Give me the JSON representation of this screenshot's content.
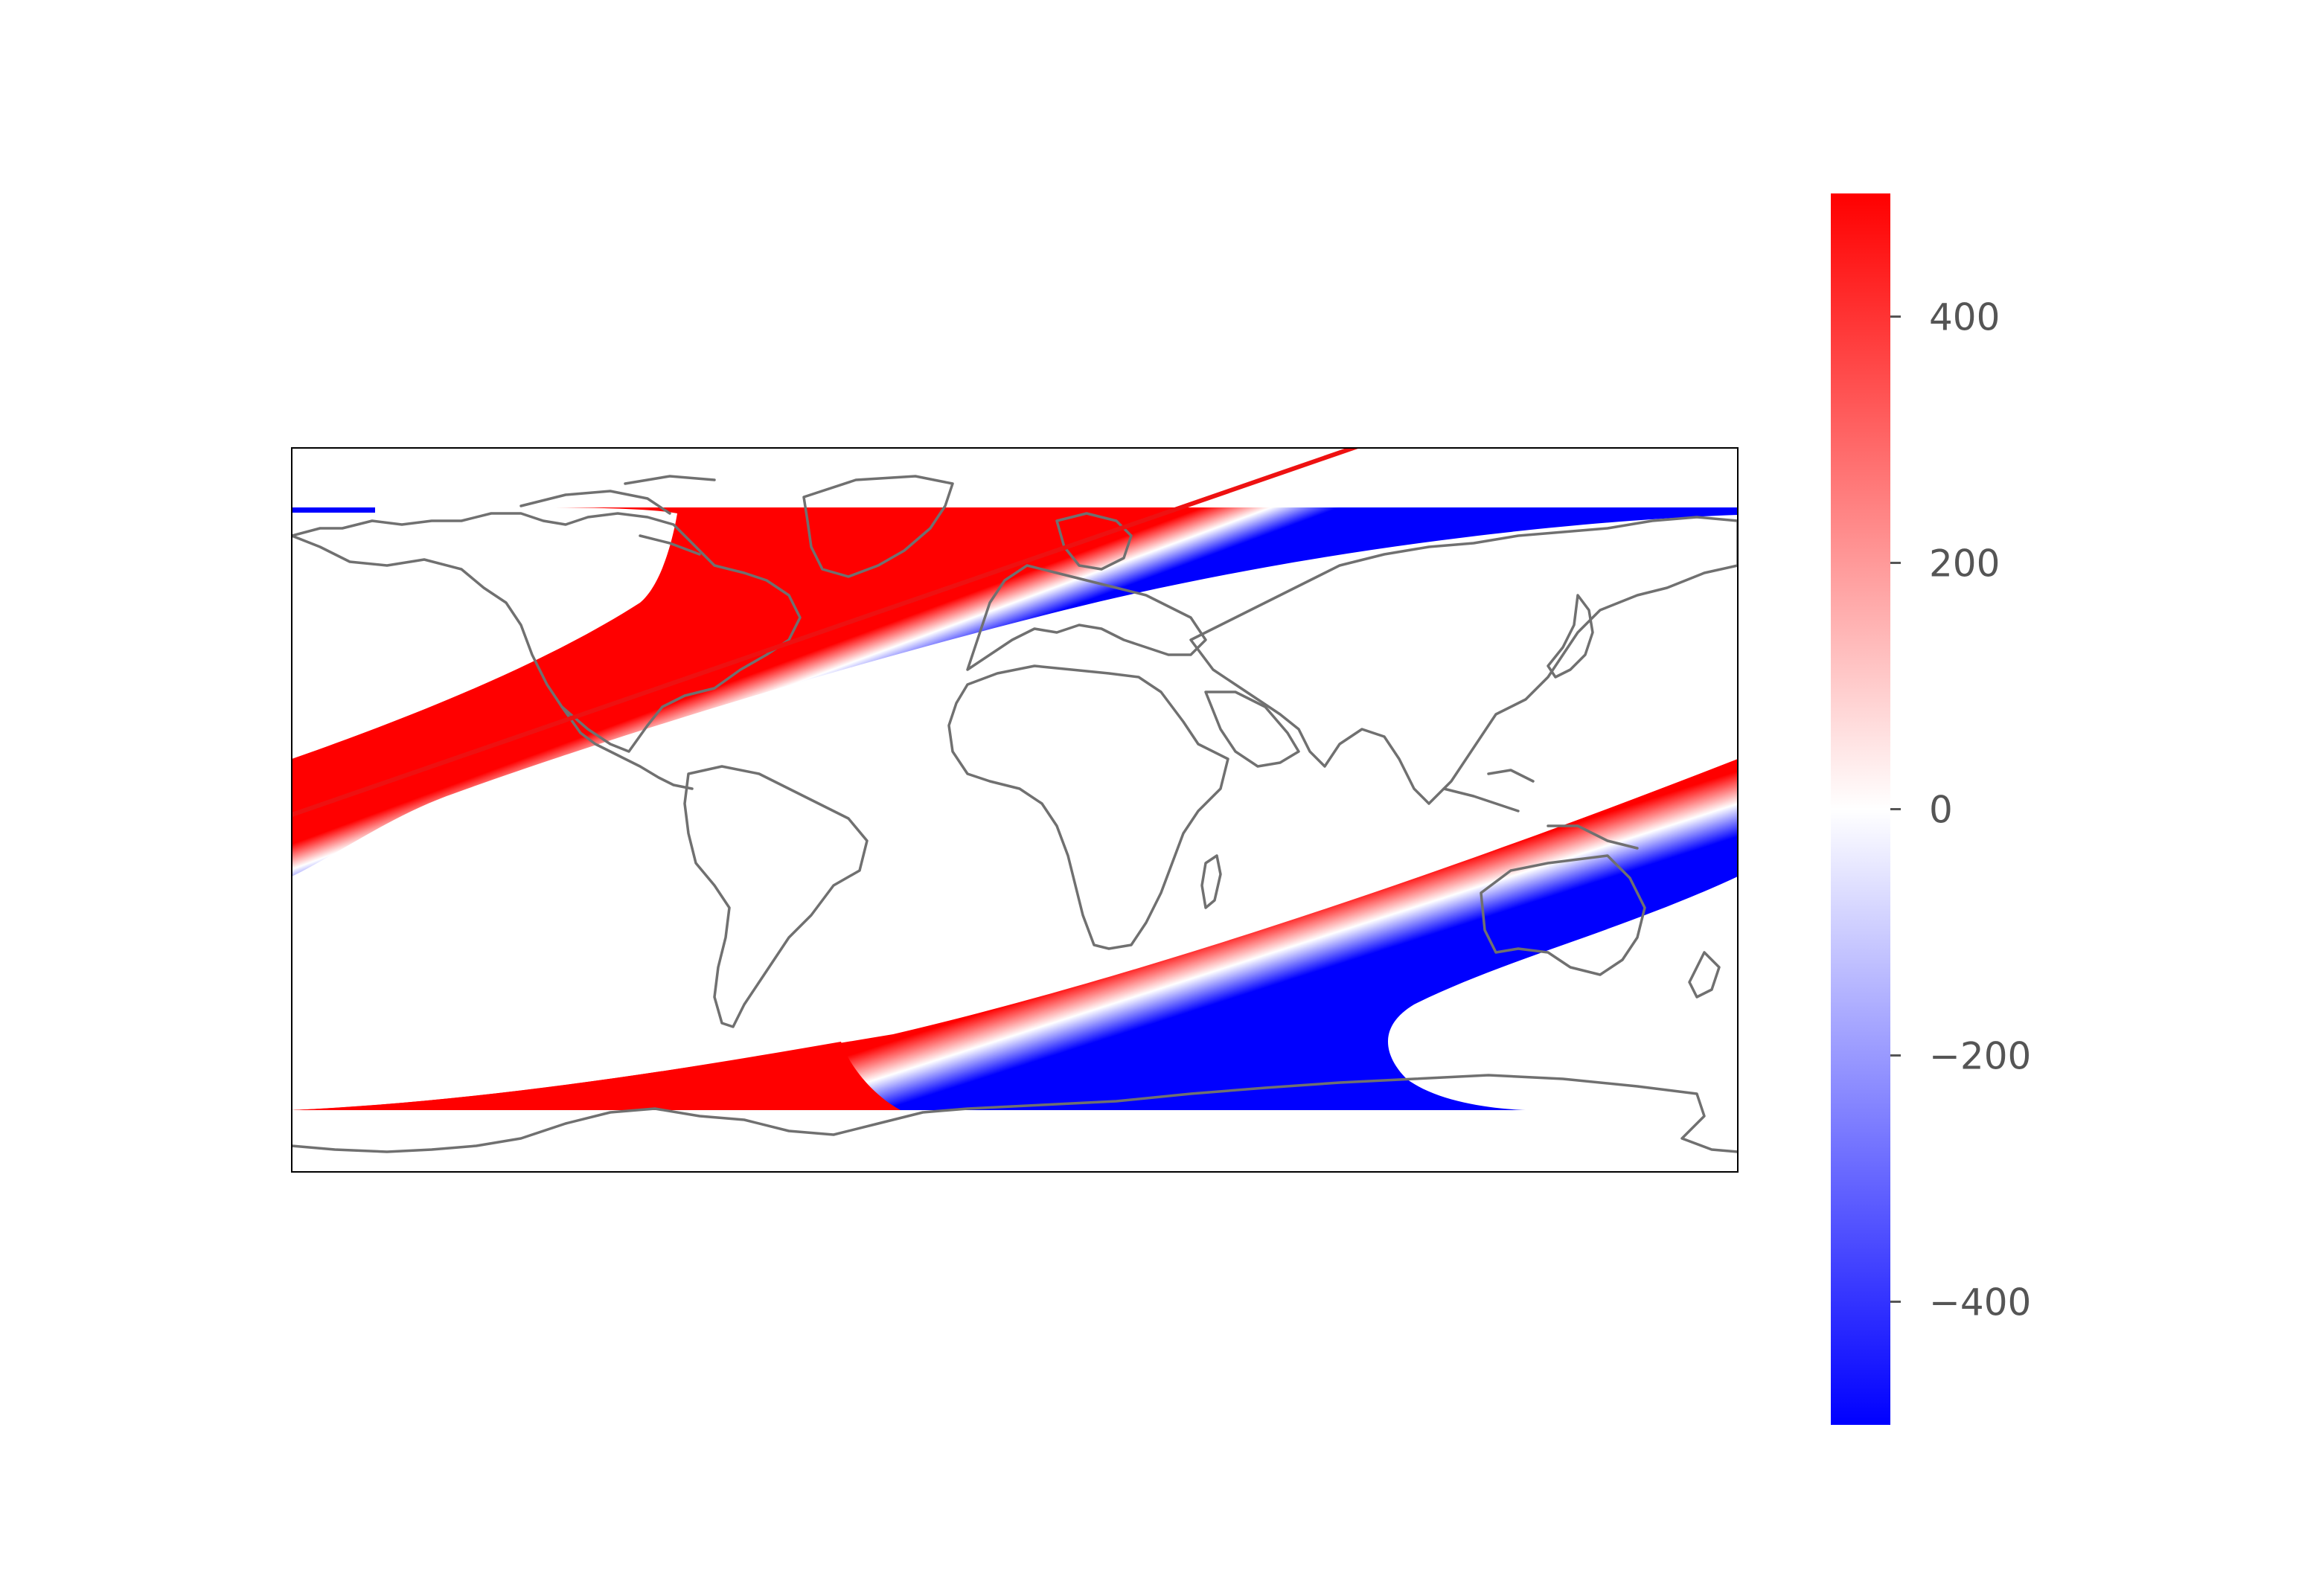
{
  "figure": {
    "type": "map",
    "projection": "plate-carree",
    "description_free": true,
    "field": {
      "colormap": [
        "#0000ff",
        "#ffffff",
        "#ff0000"
      ],
      "value_range": [
        -500,
        500
      ]
    },
    "track_line_color": "#ee1111",
    "coastline_color": "#707070"
  },
  "colorbar": {
    "vmin": -500,
    "vmax": 500,
    "ticks": [
      {
        "value": 400,
        "label": "400"
      },
      {
        "value": 200,
        "label": "200"
      },
      {
        "value": 0,
        "label": "0"
      },
      {
        "value": -200,
        "label": "−200"
      },
      {
        "value": -400,
        "label": "−400"
      }
    ],
    "color_high": "#ff0000",
    "color_mid": "#ffffff",
    "color_low": "#0000ff"
  }
}
